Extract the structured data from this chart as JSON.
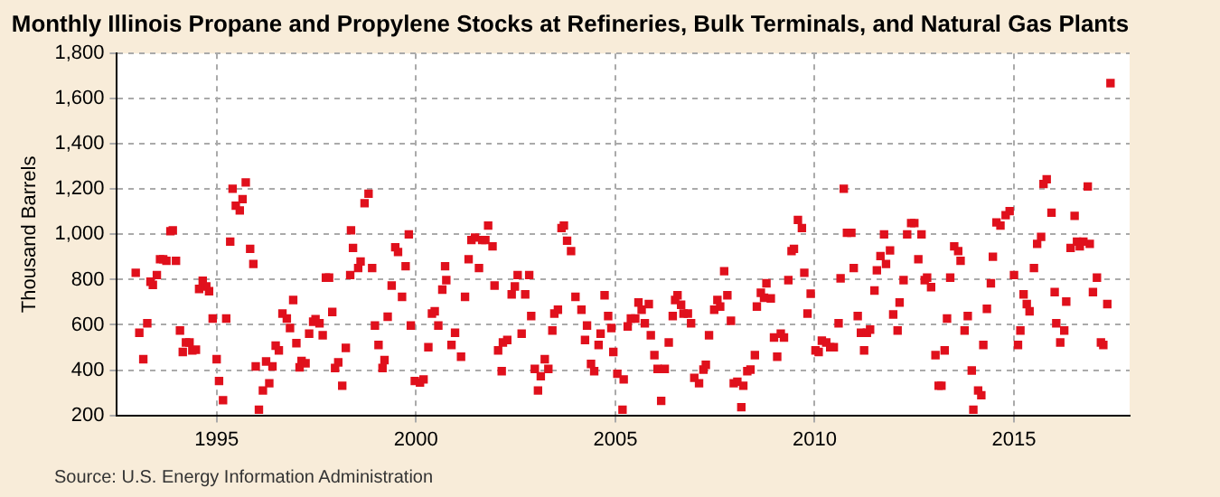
{
  "chart_data": {
    "type": "scatter",
    "title": "Monthly Illinois Propane and Propylene Stocks at Refineries, Bulk Terminals, and Natural Gas Plants",
    "ylabel": "Thousand Barrels",
    "annotations": [
      "Source: U.S. Energy Information Administration"
    ],
    "x": [
      1992.97,
      1993.06,
      1993.16,
      1993.26,
      1993.34,
      1993.4,
      1993.5,
      1993.58,
      1993.66,
      1993.74,
      1993.84,
      1993.9,
      1993.98,
      1994.08,
      1994.15,
      1994.23,
      1994.32,
      1994.39,
      1994.48,
      1994.56,
      1994.65,
      1994.74,
      1994.81,
      1994.9,
      1995.0,
      1995.06,
      1995.16,
      1995.24,
      1995.34,
      1995.4,
      1995.48,
      1995.58,
      1995.65,
      1995.73,
      1995.84,
      1995.92,
      1995.98,
      1996.06,
      1996.16,
      1996.24,
      1996.32,
      1996.4,
      1996.48,
      1996.56,
      1996.65,
      1996.76,
      1996.84,
      1996.92,
      1997.0,
      1997.08,
      1997.13,
      1997.23,
      1997.32,
      1997.42,
      1997.48,
      1997.58,
      1997.66,
      1997.74,
      1997.82,
      1997.9,
      1997.97,
      1998.05,
      1998.15,
      1998.24,
      1998.35,
      1998.37,
      1998.42,
      1998.55,
      1998.61,
      1998.71,
      1998.81,
      1998.9,
      1998.97,
      1999.06,
      1999.16,
      1999.21,
      1999.29,
      1999.39,
      1999.48,
      1999.55,
      1999.65,
      1999.74,
      1999.82,
      1999.87,
      1999.97,
      2000.1,
      2000.19,
      2000.31,
      2000.4,
      2000.47,
      2000.56,
      2000.66,
      2000.73,
      2000.76,
      2000.89,
      2000.98,
      2001.13,
      2001.23,
      2001.32,
      2001.39,
      2001.48,
      2001.58,
      2001.66,
      2001.74,
      2001.81,
      2001.92,
      2001.97,
      2002.06,
      2002.15,
      2002.18,
      2002.29,
      2002.4,
      2002.48,
      2002.55,
      2002.65,
      2002.74,
      2002.84,
      2002.89,
      2002.98,
      2003.06,
      2003.13,
      2003.23,
      2003.32,
      2003.42,
      2003.47,
      2003.56,
      2003.65,
      2003.71,
      2003.79,
      2003.89,
      2004.0,
      2004.15,
      2004.24,
      2004.29,
      2004.39,
      2004.47,
      2004.58,
      2004.63,
      2004.73,
      2004.82,
      2004.9,
      2004.95,
      2005.05,
      2005.18,
      2005.21,
      2005.31,
      2005.39,
      2005.5,
      2005.58,
      2005.66,
      2005.74,
      2005.84,
      2005.89,
      2005.98,
      2006.06,
      2006.15,
      2006.24,
      2006.34,
      2006.44,
      2006.5,
      2006.56,
      2006.65,
      2006.71,
      2006.82,
      2006.9,
      2006.98,
      2007.1,
      2007.21,
      2007.27,
      2007.35,
      2007.48,
      2007.56,
      2007.63,
      2007.73,
      2007.81,
      2007.9,
      2007.97,
      2008.06,
      2008.16,
      2008.21,
      2008.31,
      2008.39,
      2008.5,
      2008.55,
      2008.65,
      2008.73,
      2008.79,
      2008.9,
      2008.98,
      2009.06,
      2009.15,
      2009.23,
      2009.34,
      2009.42,
      2009.48,
      2009.58,
      2009.68,
      2009.74,
      2009.82,
      2009.9,
      2010.02,
      2010.1,
      2010.18,
      2010.29,
      2010.39,
      2010.48,
      2010.6,
      2010.65,
      2010.73,
      2010.81,
      2010.92,
      2010.98,
      2011.08,
      2011.16,
      2011.24,
      2011.31,
      2011.39,
      2011.5,
      2011.56,
      2011.65,
      2011.74,
      2011.79,
      2011.89,
      2011.97,
      2012.08,
      2012.13,
      2012.23,
      2012.32,
      2012.42,
      2012.5,
      2012.6,
      2012.68,
      2012.76,
      2012.82,
      2012.92,
      2013.03,
      2013.11,
      2013.18,
      2013.26,
      2013.32,
      2013.4,
      2013.5,
      2013.6,
      2013.66,
      2013.76,
      2013.84,
      2013.94,
      2013.98,
      2014.1,
      2014.18,
      2014.23,
      2014.32,
      2014.42,
      2014.47,
      2014.56,
      2014.66,
      2014.79,
      2014.89,
      2015.0,
      2015.1,
      2015.16,
      2015.24,
      2015.32,
      2015.39,
      2015.5,
      2015.58,
      2015.68,
      2015.74,
      2015.82,
      2015.94,
      2016.02,
      2016.06,
      2016.16,
      2016.26,
      2016.31,
      2016.42,
      2016.52,
      2016.58,
      2016.65,
      2016.74,
      2016.85,
      2016.9,
      2016.98,
      2017.08,
      2017.18,
      2017.24,
      2017.34,
      2017.42
    ],
    "series": [
      {
        "color": "#e0101c",
        "values": [
          830,
          565,
          448,
          607,
          791,
          777,
          820,
          890,
          890,
          883,
          1014,
          1018,
          883,
          575,
          480,
          522,
          522,
          487,
          490,
          759,
          795,
          770,
          749,
          628,
          448,
          352,
          267,
          628,
          968,
          1202,
          1127,
          1106,
          1156,
          1230,
          936,
          869,
          416,
          225,
          310,
          438,
          342,
          416,
          508,
          487,
          650,
          628,
          586,
          710,
          519,
          412,
          440,
          430,
          561,
          614,
          625,
          607,
          554,
          809,
          809,
          657,
          409,
          434,
          331,
          498,
          820,
          1018,
          940,
          851,
          880,
          1138,
          1180,
          851,
          597,
          511,
          409,
          444,
          636,
          774,
          943,
          922,
          724,
          859,
          1000,
          597,
          352,
          345,
          359,
          501,
          650,
          660,
          597,
          756,
          859,
          798,
          511,
          565,
          459,
          724,
          890,
          975,
          986,
          851,
          975,
          975,
          1039,
          947,
          774,
          487,
          395,
          522,
          533,
          735,
          770,
          820,
          561,
          735,
          820,
          639,
          405,
          310,
          373,
          448,
          405,
          575,
          650,
          667,
          1028,
          1039,
          972,
          926,
          724,
          667,
          533,
          597,
          427,
          395,
          511,
          561,
          731,
          639,
          586,
          480,
          384,
          225,
          359,
          593,
          628,
          628,
          699,
          667,
          607,
          692,
          554,
          466,
          405,
          264,
          405,
          522,
          639,
          710,
          731,
          689,
          650,
          650,
          607,
          366,
          342,
          402,
          423,
          554,
          667,
          710,
          681,
          837,
          731,
          618,
          342,
          349,
          236,
          331,
          395,
          402,
          466,
          681,
          742,
          720,
          784,
          717,
          544,
          459,
          561,
          544,
          798,
          926,
          936,
          1064,
          1028,
          830,
          650,
          738,
          487,
          480,
          530,
          522,
          501,
          501,
          607,
          806,
          1202,
          1007,
          1007,
          851,
          639,
          565,
          487,
          565,
          579,
          752,
          841,
          904,
          1000,
          869,
          929,
          646,
          575,
          699,
          798,
          1000,
          1050,
          1050,
          890,
          1000,
          798,
          809,
          767,
          466,
          331,
          331,
          487,
          628,
          809,
          947,
          926,
          883,
          575,
          639,
          398,
          225,
          310,
          289,
          511,
          671,
          784,
          901,
          1053,
          1039,
          1085,
          1103,
          820,
          511,
          575,
          735,
          692,
          660,
          851,
          958,
          989,
          1223,
          1244,
          1096,
          745,
          607,
          522,
          575,
          703,
          940,
          1082,
          968,
          947,
          968,
          1212,
          958,
          745,
          809,
          522,
          511,
          692,
          1669
        ]
      }
    ],
    "xlim": [
      1992.5,
      2017.9
    ],
    "xticks": [
      1995,
      2000,
      2005,
      2010,
      2015
    ],
    "ylim": [
      200,
      1800
    ],
    "yticks": [
      200,
      400,
      600,
      800,
      {
        "value": 1000,
        "label": "1,000"
      },
      {
        "value": 1200,
        "label": "1,200"
      },
      {
        "value": 1400,
        "label": "1,400"
      },
      {
        "value": 1600,
        "label": "1,600"
      },
      {
        "value": 1800,
        "label": "1,800"
      }
    ],
    "grid": true,
    "marker": "square"
  }
}
